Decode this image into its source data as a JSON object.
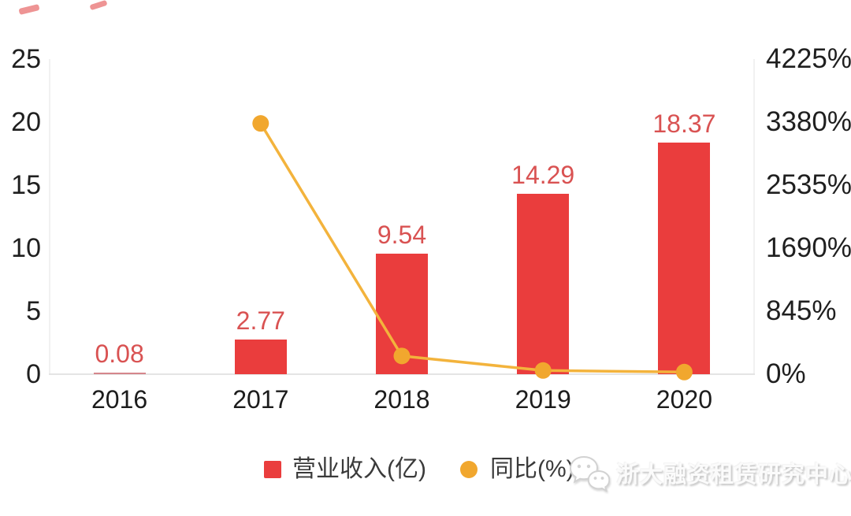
{
  "watermark": {
    "text": "浙大融资租赁研究中心",
    "icon": "wechat-icon"
  },
  "annotations": {
    "marks": [
      "red-stroke",
      "red-stroke"
    ]
  },
  "chart_data": {
    "type": "bar+line",
    "title": "",
    "categories": [
      "2016",
      "2017",
      "2018",
      "2019",
      "2020"
    ],
    "series": [
      {
        "name": "营业收入(亿)",
        "type": "bar",
        "axis": "left",
        "values": [
          0.08,
          2.77,
          9.54,
          14.29,
          18.37
        ],
        "data_labels": [
          "0.08",
          "2.77",
          "9.54",
          "14.29",
          "18.37"
        ]
      },
      {
        "name": "同比(%)",
        "type": "line",
        "axis": "right",
        "values": [
          null,
          3362.5,
          244.4,
          49.8,
          28.6
        ]
      }
    ],
    "left_axis": {
      "min": 0,
      "max": 25,
      "ticks": [
        "25",
        "20",
        "15",
        "10",
        "5",
        "0"
      ]
    },
    "right_axis": {
      "min": 0,
      "max": 4225,
      "ticks": [
        "4225%",
        "3380%",
        "2535%",
        "1690%",
        "845%",
        "0%"
      ]
    },
    "legend": {
      "position": "bottom"
    },
    "grid": false,
    "colors": {
      "bar": "#ea3d3d",
      "bar_tiny": "#d5868c",
      "line": "#f3b33c",
      "marker": "#f1a72e",
      "value_label": "#d95252",
      "axis_text": "#1f1f1f"
    }
  }
}
